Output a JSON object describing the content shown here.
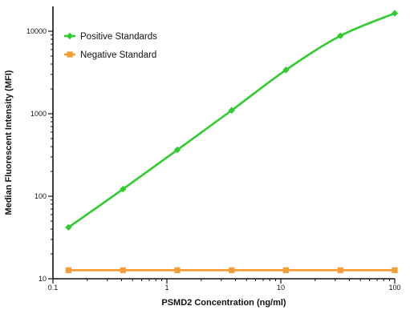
{
  "chart_data": {
    "type": "line",
    "title": "",
    "xlabel": "PSMD2 Concentration (ng/ml)",
    "ylabel": "Median Fluorescent Intensity (MFI)",
    "x_scale": "log",
    "y_scale": "log",
    "xlim": [
      0.1,
      100
    ],
    "ylim": [
      10,
      20000
    ],
    "x_ticks": [
      {
        "value": 0.1,
        "label": "0.1"
      },
      {
        "value": 1,
        "label": "1"
      },
      {
        "value": 10,
        "label": "10"
      },
      {
        "value": 100,
        "label": "100"
      }
    ],
    "y_ticks": [
      {
        "value": 10,
        "label": "10"
      },
      {
        "value": 100,
        "label": "100"
      },
      {
        "value": 1000,
        "label": "1000"
      },
      {
        "value": 10000,
        "label": "10000"
      }
    ],
    "grid": false,
    "legend_position": "top-left",
    "series": [
      {
        "name": "Positive Standards",
        "color": "#2ecc2e",
        "marker": "diamond",
        "x": [
          0.137,
          0.412,
          1.235,
          3.704,
          11.11,
          33.33,
          100
        ],
        "y": [
          42,
          122,
          365,
          1100,
          3400,
          8800,
          16500
        ]
      },
      {
        "name": "Negative Standard",
        "color": "#f39c34",
        "marker": "square",
        "x": [
          0.137,
          0.412,
          1.235,
          3.704,
          11.11,
          33.33,
          100
        ],
        "y": [
          12.7,
          12.7,
          12.7,
          12.7,
          12.7,
          12.7,
          12.7
        ]
      }
    ]
  }
}
